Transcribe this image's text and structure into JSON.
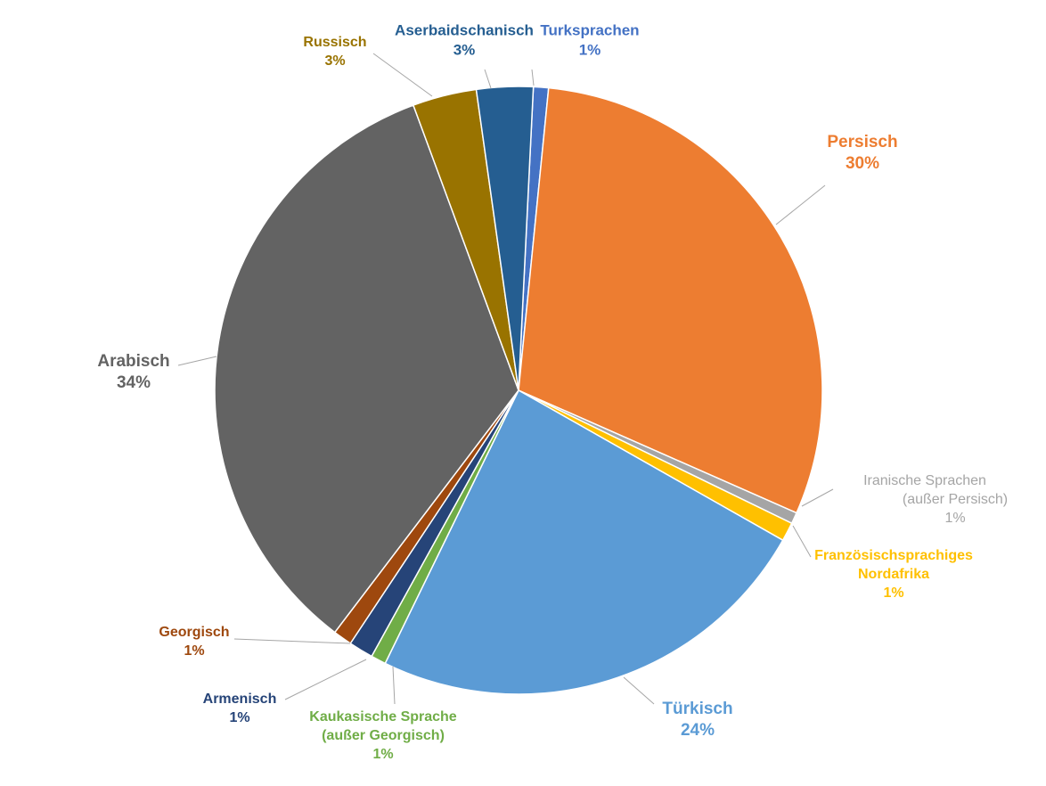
{
  "chart_data": {
    "type": "pie",
    "slices": [
      {
        "name": "Turksprachen",
        "value": 0.8,
        "label": "1%",
        "color": "#4472C4"
      },
      {
        "name": "Persisch",
        "value": 30,
        "label": "30%",
        "color": "#ED7D31"
      },
      {
        "name": "Iranische Sprachen (außer Persisch)",
        "name_lines": [
          "Iranische Sprachen",
          "(außer Persisch)"
        ],
        "value": 0.6,
        "label": "1%",
        "color": "#A5A5A5",
        "bold": false
      },
      {
        "name": "Französischsprachiges Nordafrika",
        "name_lines": [
          "Französischsprachiges",
          "Nordafrika"
        ],
        "value": 1.0,
        "label": "1%",
        "color": "#FFC000"
      },
      {
        "name": "Türkisch",
        "value": 24,
        "label": "24%",
        "color": "#5B9BD5"
      },
      {
        "name": "Kaukasische Sprache (außer Georgisch)",
        "name_lines": [
          "Kaukasische Sprache",
          "(außer Georgisch)"
        ],
        "value": 0.8,
        "label": "1%",
        "color": "#70AD47"
      },
      {
        "name": "Armenisch",
        "value": 1.3,
        "label": "1%",
        "color": "#264478"
      },
      {
        "name": "Georgisch",
        "value": 1.0,
        "label": "1%",
        "color": "#9E480E"
      },
      {
        "name": "Arabisch",
        "value": 34,
        "label": "34%",
        "color": "#636363"
      },
      {
        "name": "Russisch",
        "value": 3.4,
        "label": "3%",
        "color": "#997300"
      },
      {
        "name": "Aserbaidschanisch",
        "value": 3.0,
        "label": "3%",
        "color": "#255E91"
      }
    ],
    "legend": "none",
    "labels": "outside-with-leader-lines"
  }
}
